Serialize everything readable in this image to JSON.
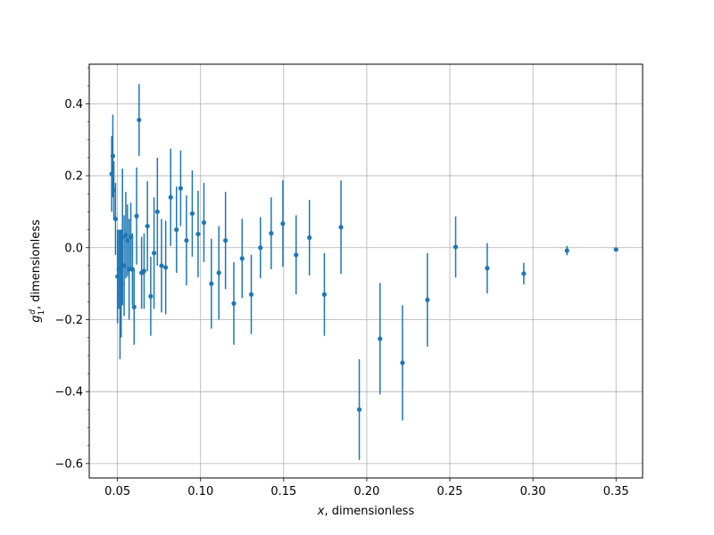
{
  "chart_data": {
    "type": "scatter",
    "title": "",
    "xlabel": "x, dimensionless",
    "ylabel": "g1d, dimensionless",
    "xlim": [
      0.033,
      0.366
    ],
    "ylim": [
      -0.64,
      0.51
    ],
    "xticks": [
      0.05,
      0.1,
      0.15,
      0.2,
      0.25,
      0.3,
      0.35
    ],
    "xtick_labels": [
      "0.05",
      "0.10",
      "0.15",
      "0.20",
      "0.25",
      "0.30",
      "0.35"
    ],
    "yticks": [
      -0.6,
      -0.4,
      -0.2,
      0.0,
      0.2,
      0.4
    ],
    "ytick_labels": [
      "−0.6",
      "−0.4",
      "−0.2",
      "0.0",
      "0.2",
      "0.4"
    ],
    "grid": true,
    "color": "#1f77b4",
    "series": [
      {
        "points": [
          {
            "x": 0.0465,
            "y": 0.205,
            "err": 0.105
          },
          {
            "x": 0.0472,
            "y": 0.255,
            "err": 0.115
          },
          {
            "x": 0.0478,
            "y": 0.16,
            "err": 0.08
          },
          {
            "x": 0.0488,
            "y": 0.08,
            "err": 0.1
          },
          {
            "x": 0.05,
            "y": -0.08,
            "err": 0.13
          },
          {
            "x": 0.0508,
            "y": -0.06,
            "err": 0.11
          },
          {
            "x": 0.0515,
            "y": -0.13,
            "err": 0.18
          },
          {
            "x": 0.0522,
            "y": -0.1,
            "err": 0.15
          },
          {
            "x": 0.053,
            "y": 0.03,
            "err": 0.19
          },
          {
            "x": 0.054,
            "y": -0.05,
            "err": 0.14
          },
          {
            "x": 0.055,
            "y": 0.035,
            "err": 0.12
          },
          {
            "x": 0.056,
            "y": 0.02,
            "err": 0.1
          },
          {
            "x": 0.057,
            "y": -0.06,
            "err": 0.14
          },
          {
            "x": 0.058,
            "y": 0.03,
            "err": 0.095
          },
          {
            "x": 0.059,
            "y": -0.06,
            "err": 0.1
          },
          {
            "x": 0.06,
            "y": -0.165,
            "err": 0.105
          },
          {
            "x": 0.0615,
            "y": 0.088,
            "err": 0.135
          },
          {
            "x": 0.063,
            "y": 0.355,
            "err": 0.1
          },
          {
            "x": 0.0645,
            "y": -0.07,
            "err": 0.1
          },
          {
            "x": 0.066,
            "y": -0.065,
            "err": 0.105
          },
          {
            "x": 0.068,
            "y": 0.06,
            "err": 0.125
          },
          {
            "x": 0.07,
            "y": -0.135,
            "err": 0.11
          },
          {
            "x": 0.072,
            "y": -0.015,
            "err": 0.155
          },
          {
            "x": 0.074,
            "y": 0.1,
            "err": 0.15
          },
          {
            "x": 0.0765,
            "y": -0.05,
            "err": 0.13
          },
          {
            "x": 0.079,
            "y": -0.055,
            "err": 0.13
          },
          {
            "x": 0.082,
            "y": 0.14,
            "err": 0.135
          },
          {
            "x": 0.0855,
            "y": 0.05,
            "err": 0.12
          },
          {
            "x": 0.088,
            "y": 0.165,
            "err": 0.105
          },
          {
            "x": 0.0915,
            "y": 0.02,
            "err": 0.125
          },
          {
            "x": 0.095,
            "y": 0.095,
            "err": 0.12
          },
          {
            "x": 0.0985,
            "y": 0.038,
            "err": 0.12
          },
          {
            "x": 0.102,
            "y": 0.07,
            "err": 0.11
          },
          {
            "x": 0.1065,
            "y": -0.1,
            "err": 0.125
          },
          {
            "x": 0.111,
            "y": -0.07,
            "err": 0.13
          },
          {
            "x": 0.115,
            "y": 0.02,
            "err": 0.135
          },
          {
            "x": 0.12,
            "y": -0.155,
            "err": 0.115
          },
          {
            "x": 0.125,
            "y": -0.03,
            "err": 0.11
          },
          {
            "x": 0.1305,
            "y": -0.13,
            "err": 0.11
          },
          {
            "x": 0.136,
            "y": 0.0,
            "err": 0.085
          },
          {
            "x": 0.1425,
            "y": 0.04,
            "err": 0.1
          },
          {
            "x": 0.1495,
            "y": 0.067,
            "err": 0.12
          },
          {
            "x": 0.1575,
            "y": -0.02,
            "err": 0.11
          },
          {
            "x": 0.1655,
            "y": 0.028,
            "err": 0.105
          },
          {
            "x": 0.1745,
            "y": -0.13,
            "err": 0.115
          },
          {
            "x": 0.1845,
            "y": 0.057,
            "err": 0.13
          },
          {
            "x": 0.1955,
            "y": -0.45,
            "err": 0.14
          },
          {
            "x": 0.208,
            "y": -0.253,
            "err": 0.155
          },
          {
            "x": 0.2215,
            "y": -0.32,
            "err": 0.16
          },
          {
            "x": 0.2365,
            "y": -0.145,
            "err": 0.13
          },
          {
            "x": 0.2535,
            "y": 0.002,
            "err": 0.085
          },
          {
            "x": 0.2725,
            "y": -0.057,
            "err": 0.07
          },
          {
            "x": 0.2945,
            "y": -0.072,
            "err": 0.03
          },
          {
            "x": 0.3205,
            "y": -0.008,
            "err": 0.013
          },
          {
            "x": 0.35,
            "y": -0.005,
            "err": 0.005
          }
        ]
      }
    ]
  }
}
